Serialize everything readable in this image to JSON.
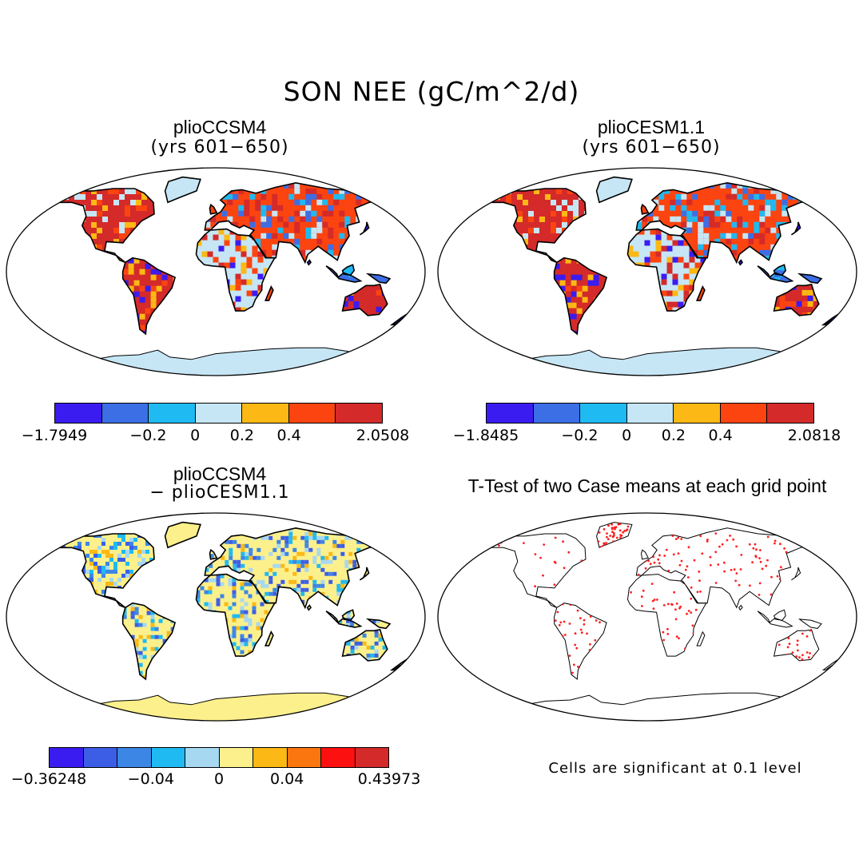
{
  "figure": {
    "title": "SON NEE (gC/m^2/d)"
  },
  "panels": [
    {
      "id": "ccsm4",
      "title": "plioCCSM4",
      "subtitle": "(yrs 601−650)",
      "colorbar": {
        "colors": [
          "#3b1cf0",
          "#3c6ee6",
          "#1fbaf2",
          "#c6e6f5",
          "#fcb814",
          "#fc4410",
          "#d42a2a"
        ],
        "labels": [
          "−1.7949",
          "−0.2",
          "0",
          "0.2",
          "0.4",
          "2.0508"
        ]
      }
    },
    {
      "id": "cesm",
      "title": "plioCESM1.1",
      "subtitle": "(yrs 601−650)",
      "colorbar": {
        "colors": [
          "#3b1cf0",
          "#3c6ee6",
          "#1fbaf2",
          "#c6e6f5",
          "#fcb814",
          "#fc4410",
          "#d42a2a"
        ],
        "labels": [
          "−1.8485",
          "−0.2",
          "0",
          "0.2",
          "0.4",
          "2.0818"
        ]
      }
    },
    {
      "id": "diff",
      "title": "plioCCSM4",
      "subtitle": "− plioCESM1.1",
      "colorbar": {
        "colors": [
          "#3b1cf0",
          "#3c5ee6",
          "#3c86e6",
          "#1fbaf2",
          "#a6d8f2",
          "#fcf08c",
          "#fcb814",
          "#fc7610",
          "#fc1010",
          "#d42a2a"
        ],
        "labels": [
          "−0.36248",
          "−0.04",
          "0",
          "0.04",
          "0.43973"
        ]
      }
    },
    {
      "id": "ttest",
      "title": "T-Test of two Case means at each grid point",
      "note": "Cells are significant at 0.1 level"
    }
  ]
}
